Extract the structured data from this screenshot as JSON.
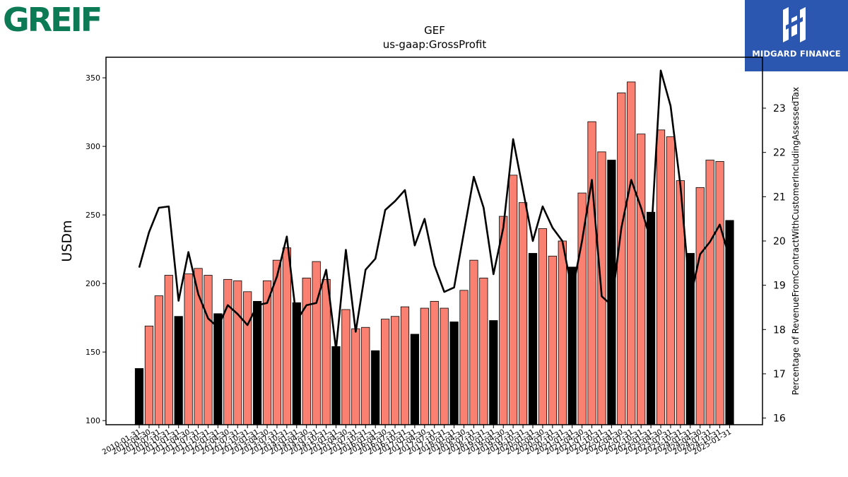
{
  "brand": {
    "left_logo_text": "GREIF",
    "right_logo_text": "MIDGARD FINANCE",
    "left_logo_color": "#0b7a55",
    "right_logo_bg": "#2c57b0"
  },
  "chart_data": {
    "type": "bar",
    "title": "GEF",
    "subtitle": "us-gaap:GrossProfit",
    "ylabel": "USDm",
    "y2label": "Percentage of RevenueFromContractWithCustomerIncludingAssessedTax",
    "ylim": [
      97,
      365
    ],
    "y2lim": [
      15.85,
      24.15
    ],
    "yticks": [
      100,
      150,
      200,
      250,
      300,
      350
    ],
    "y2ticks": [
      16,
      17,
      18,
      19,
      20,
      21,
      22,
      23
    ],
    "colors": {
      "annual": "#000000",
      "quarterly": "#fa8072",
      "line": "#000000"
    },
    "x_tick_labels": [
      "2010-01-31",
      "2010-04-30",
      "2010-07-31",
      "2010-10-31",
      "2011-01-31",
      "2011-04-30",
      "2011-07-31",
      "2011-10-31",
      "2012-01-31",
      "2012-04-30",
      "2012-07-31",
      "2012-10-31",
      "2013-01-31",
      "2013-04-30",
      "2013-07-31",
      "2013-10-31",
      "2014-01-31",
      "2014-04-30",
      "2014-07-31",
      "2014-10-31",
      "2015-01-31",
      "2015-04-30",
      "2015-07-31",
      "2015-10-31",
      "2016-01-31",
      "2016-04-30",
      "2016-07-31",
      "2016-10-31",
      "2017-01-31",
      "2017-04-30",
      "2017-07-31",
      "2017-10-31",
      "2018-01-31",
      "2018-04-30",
      "2018-07-31",
      "2018-10-31",
      "2019-01-31",
      "2019-04-30",
      "2019-07-31",
      "2019-10-31",
      "2020-01-31",
      "2020-04-30",
      "2020-07-31",
      "2020-10-31",
      "2021-01-31",
      "2021-04-30",
      "2021-07-31",
      "2021-10-31",
      "2022-01-31",
      "2022-04-30",
      "2022-07-31",
      "2022-10-31",
      "2023-01-31",
      "2023-04-30",
      "2023-07-31",
      "2023-10-31",
      "2024-01-31",
      "2024-04-30",
      "2024-07-31",
      "2024-10-31",
      "2025-01-31"
    ],
    "bars": {
      "values": [
        138,
        169,
        191,
        206,
        176,
        207,
        211,
        206,
        178,
        203,
        202,
        194,
        187,
        202,
        217,
        226,
        186,
        204,
        216,
        203,
        154,
        181,
        167,
        168,
        151,
        174,
        176,
        183,
        163,
        182,
        187,
        182,
        172,
        195,
        217,
        204,
        173,
        249,
        279,
        259,
        222,
        240,
        220,
        231,
        212,
        266,
        318,
        296,
        290,
        339,
        347,
        309,
        252,
        312,
        307,
        275,
        222,
        270,
        290,
        289,
        246
      ],
      "is_annual": [
        1,
        0,
        0,
        0,
        1,
        0,
        0,
        0,
        1,
        0,
        0,
        0,
        1,
        0,
        0,
        0,
        1,
        0,
        0,
        0,
        1,
        0,
        0,
        0,
        1,
        0,
        0,
        0,
        1,
        0,
        0,
        0,
        1,
        0,
        0,
        0,
        1,
        0,
        0,
        0,
        1,
        0,
        0,
        0,
        1,
        0,
        0,
        0,
        1,
        0,
        0,
        0,
        1,
        0,
        0,
        0,
        1,
        0,
        0,
        0,
        1
      ]
    },
    "line": {
      "values": [
        19.4,
        20.2,
        20.75,
        20.78,
        18.65,
        19.75,
        18.8,
        18.25,
        18.05,
        18.55,
        18.35,
        18.1,
        18.55,
        18.6,
        19.2,
        20.1,
        18.2,
        18.55,
        18.6,
        19.35,
        17.55,
        19.8,
        17.95,
        19.35,
        19.6,
        20.7,
        20.9,
        21.15,
        19.9,
        20.5,
        19.45,
        18.85,
        18.95,
        20.2,
        21.45,
        20.75,
        19.25,
        20.3,
        22.3,
        21.15,
        20.0,
        20.78,
        20.3,
        20.0,
        18.85,
        20.0,
        21.38,
        18.75,
        18.55,
        20.3,
        21.38,
        20.75,
        20.0,
        23.85,
        23.05,
        21.25,
        18.7,
        19.7,
        19.98,
        20.37,
        19.6
      ]
    }
  }
}
